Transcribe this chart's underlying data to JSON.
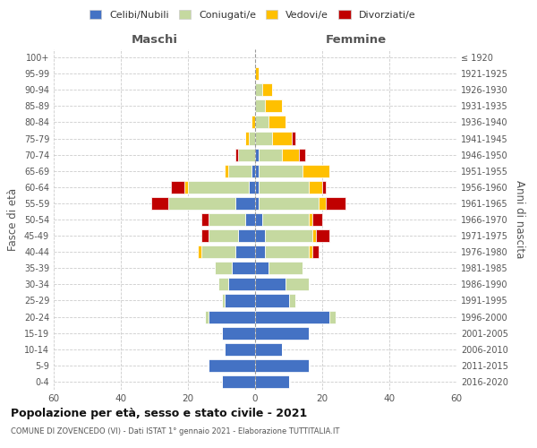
{
  "age_groups": [
    "0-4",
    "5-9",
    "10-14",
    "15-19",
    "20-24",
    "25-29",
    "30-34",
    "35-39",
    "40-44",
    "45-49",
    "50-54",
    "55-59",
    "60-64",
    "65-69",
    "70-74",
    "75-79",
    "80-84",
    "85-89",
    "90-94",
    "95-99",
    "100+"
  ],
  "birth_years": [
    "2016-2020",
    "2011-2015",
    "2006-2010",
    "2001-2005",
    "1996-2000",
    "1991-1995",
    "1986-1990",
    "1981-1985",
    "1976-1980",
    "1971-1975",
    "1966-1970",
    "1961-1965",
    "1956-1960",
    "1951-1955",
    "1946-1950",
    "1941-1945",
    "1936-1940",
    "1931-1935",
    "1926-1930",
    "1921-1925",
    "≤ 1920"
  ],
  "males": {
    "celibi": [
      10,
      14,
      9,
      10,
      14,
      9,
      8,
      7,
      6,
      5,
      3,
      6,
      2,
      1,
      0,
      0,
      0,
      0,
      0,
      0,
      0
    ],
    "coniugati": [
      0,
      0,
      0,
      0,
      1,
      1,
      3,
      5,
      10,
      9,
      11,
      20,
      18,
      7,
      5,
      2,
      0,
      0,
      0,
      0,
      0
    ],
    "vedovi": [
      0,
      0,
      0,
      0,
      0,
      0,
      0,
      0,
      1,
      0,
      0,
      0,
      1,
      1,
      0,
      1,
      1,
      0,
      0,
      0,
      0
    ],
    "divorziati": [
      0,
      0,
      0,
      0,
      0,
      0,
      0,
      0,
      0,
      2,
      2,
      5,
      4,
      0,
      1,
      0,
      0,
      0,
      0,
      0,
      0
    ]
  },
  "females": {
    "nubili": [
      10,
      16,
      8,
      16,
      22,
      10,
      9,
      4,
      3,
      3,
      2,
      1,
      1,
      1,
      1,
      0,
      0,
      0,
      0,
      0,
      0
    ],
    "coniugate": [
      0,
      0,
      0,
      0,
      2,
      2,
      7,
      10,
      13,
      14,
      14,
      18,
      15,
      13,
      7,
      5,
      4,
      3,
      2,
      0,
      0
    ],
    "vedove": [
      0,
      0,
      0,
      0,
      0,
      0,
      0,
      0,
      1,
      1,
      1,
      2,
      4,
      8,
      5,
      6,
      5,
      5,
      3,
      1,
      0
    ],
    "divorziate": [
      0,
      0,
      0,
      0,
      0,
      0,
      0,
      0,
      2,
      4,
      3,
      6,
      1,
      0,
      2,
      1,
      0,
      0,
      0,
      0,
      0
    ]
  },
  "colors": {
    "celibi": "#4472c4",
    "coniugati": "#c5d9a0",
    "vedovi": "#ffc000",
    "divorziati": "#c00000"
  },
  "xlim": 60,
  "title": "Popolazione per età, sesso e stato civile - 2021",
  "subtitle": "COMUNE DI ZOVENCEDO (VI) - Dati ISTAT 1° gennaio 2021 - Elaborazione TUTTITALIA.IT",
  "ylabel_left": "Fasce di età",
  "ylabel_right": "Anni di nascita",
  "xlabel_left": "Maschi",
  "xlabel_right": "Femmine",
  "legend_labels": [
    "Celibi/Nubili",
    "Coniugati/e",
    "Vedovi/e",
    "Divorziati/e"
  ],
  "background_color": "#ffffff",
  "grid_color": "#cccccc"
}
